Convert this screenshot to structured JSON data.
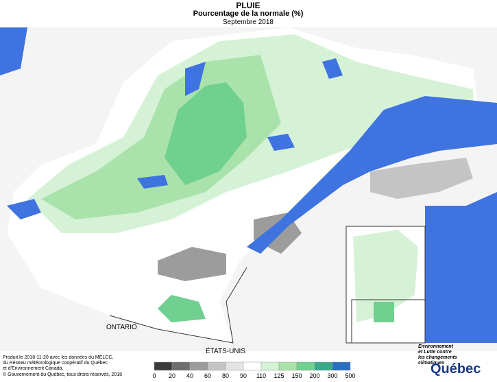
{
  "header": {
    "title": "PLUIE",
    "subtitle": "Pourcentage de la normale (%)",
    "period": "Septembre 2018"
  },
  "map": {
    "labels": [
      "ONTARIO",
      "ÉTATS-UNIS"
    ]
  },
  "credits": {
    "lines": [
      "Produit le 2018-11-20 avec les données du MELCC,",
      "du Réseau météorologique coopératif du Québec",
      "et d'Environnement Canada."
    ],
    "copyright": "© Gouvernement du Québec, tous droits réservés, 2018"
  },
  "legend": {
    "labels": [
      0,
      20,
      40,
      60,
      80,
      90,
      110,
      125,
      150,
      200,
      300,
      500
    ],
    "colors": [
      "#3c3c3c",
      "#6e6e6e",
      "#9c9c9c",
      "#c4c4c4",
      "#e4e4e4",
      "#ffffff",
      "#d6f2d6",
      "#a9e3ab",
      "#6fd08f",
      "#3aa98a",
      "#2b6fc0",
      "#2424c8"
    ]
  },
  "logo": {
    "lines": [
      "Environnement",
      "et Lutte contre",
      "les changements",
      "climatiques"
    ],
    "name": "Québec"
  }
}
